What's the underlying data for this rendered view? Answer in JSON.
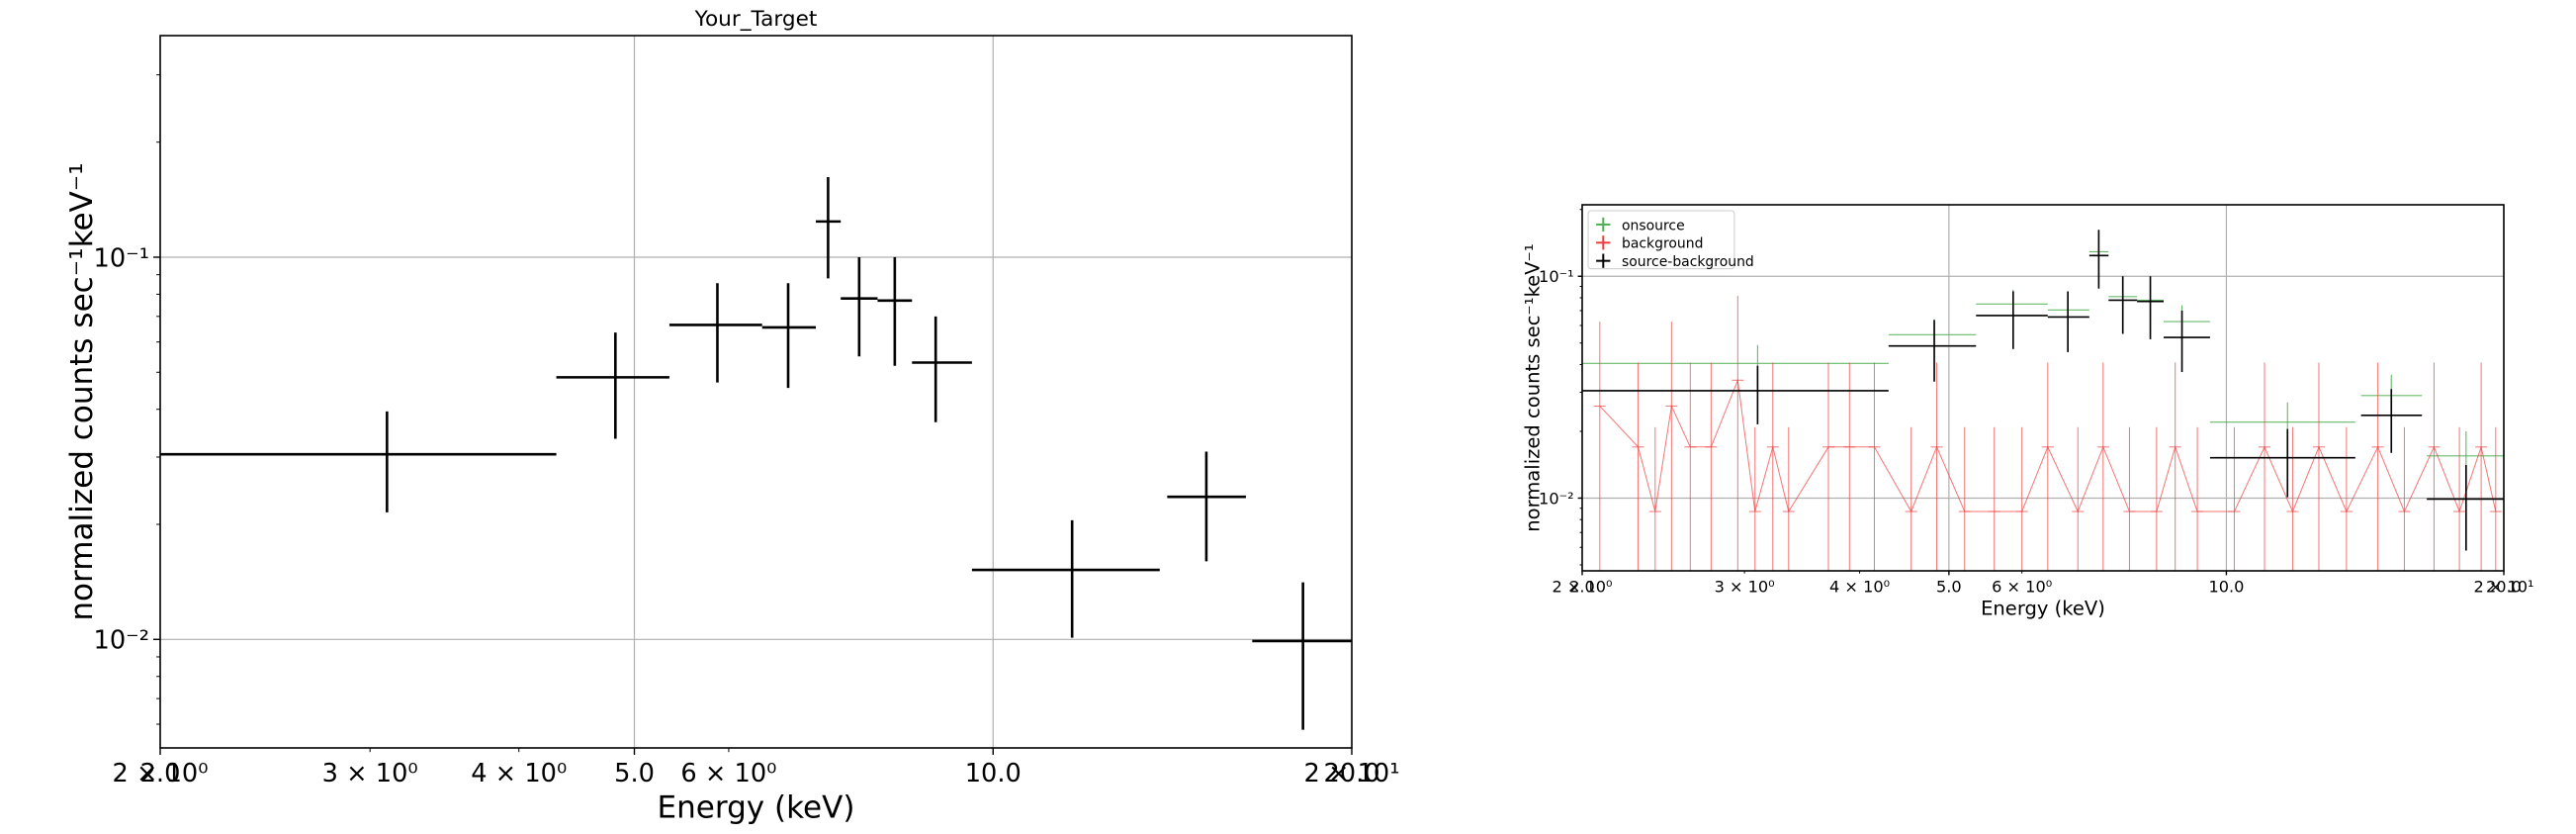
{
  "colors": {
    "frame": "#000000",
    "grid": "#b0b0b0",
    "data": "#000000",
    "onsource": "#4caf50",
    "background": "#f03c3c",
    "net": "#000000"
  },
  "chart_data": [
    {
      "type": "scatter",
      "title": "Your_Target",
      "xlabel": "Energy (keV)",
      "ylabel": "normalized counts sec⁻¹keV⁻¹",
      "xscale": "log",
      "yscale": "log",
      "xlim": [
        2.0,
        20.0
      ],
      "ylim": [
        0.0052,
        0.38
      ],
      "grid": true,
      "x_ticks": [
        {
          "value": 2.0,
          "label": "2.0"
        },
        {
          "value": 5.0,
          "label": "5.0"
        },
        {
          "value": 10.0,
          "label": "10.0"
        },
        {
          "value": 20.0,
          "label": "20.0"
        }
      ],
      "x_minor_ticks": [
        {
          "value": 2.0,
          "label": "2 × 10⁰"
        },
        {
          "value": 3.0,
          "label": "3 × 10⁰"
        },
        {
          "value": 4.0,
          "label": "4 × 10⁰"
        },
        {
          "value": 6.0,
          "label": "6 × 10⁰"
        },
        {
          "value": 20.0,
          "label": "2 × 10¹"
        }
      ],
      "y_ticks": [
        {
          "value": 0.1,
          "label": "10⁻¹"
        },
        {
          "value": 0.01,
          "label": "10⁻²"
        }
      ],
      "series": [
        {
          "points": [
            {
              "x": 3.1,
              "xlo": 2.0,
              "xhi": 4.3,
              "y": 0.0305,
              "ylo": 0.0215,
              "yhi": 0.0395
            },
            {
              "x": 4.82,
              "xlo": 4.3,
              "xhi": 5.35,
              "y": 0.0485,
              "ylo": 0.0335,
              "yhi": 0.0635
            },
            {
              "x": 5.87,
              "xlo": 5.35,
              "xhi": 6.4,
              "y": 0.0665,
              "ylo": 0.047,
              "yhi": 0.0855
            },
            {
              "x": 6.73,
              "xlo": 6.4,
              "xhi": 7.1,
              "y": 0.0655,
              "ylo": 0.0455,
              "yhi": 0.0855
            },
            {
              "x": 7.27,
              "xlo": 7.1,
              "xhi": 7.45,
              "y": 0.124,
              "ylo": 0.088,
              "yhi": 0.162
            },
            {
              "x": 7.72,
              "xlo": 7.45,
              "xhi": 8.0,
              "y": 0.078,
              "ylo": 0.055,
              "yhi": 0.1
            },
            {
              "x": 8.27,
              "xlo": 8.0,
              "xhi": 8.55,
              "y": 0.077,
              "ylo": 0.052,
              "yhi": 0.1
            },
            {
              "x": 8.95,
              "xlo": 8.55,
              "xhi": 9.6,
              "y": 0.053,
              "ylo": 0.037,
              "yhi": 0.07
            },
            {
              "x": 11.65,
              "xlo": 9.6,
              "xhi": 13.8,
              "y": 0.0152,
              "ylo": 0.0101,
              "yhi": 0.0205
            },
            {
              "x": 15.1,
              "xlo": 14.0,
              "xhi": 16.3,
              "y": 0.0236,
              "ylo": 0.016,
              "yhi": 0.031
            },
            {
              "x": 18.2,
              "xlo": 16.5,
              "xhi": 20.0,
              "y": 0.0099,
              "ylo": 0.0058,
              "yhi": 0.0141
            }
          ]
        }
      ]
    },
    {
      "type": "scatter",
      "title": "",
      "xlabel": "Energy (keV)",
      "ylabel": "normalized counts sec⁻¹keV⁻¹",
      "xscale": "log",
      "yscale": "log",
      "xlim": [
        2.0,
        20.0
      ],
      "ylim": [
        0.0047,
        0.21
      ],
      "grid": true,
      "legend_position": "top-left",
      "x_ticks": [
        {
          "value": 2.0,
          "label": "2.0"
        },
        {
          "value": 5.0,
          "label": "5.0"
        },
        {
          "value": 10.0,
          "label": "10.0"
        },
        {
          "value": 20.0,
          "label": "20.0"
        }
      ],
      "x_minor_ticks": [
        {
          "value": 2.0,
          "label": "2 × 10⁰"
        },
        {
          "value": 3.0,
          "label": "3 × 10⁰"
        },
        {
          "value": 4.0,
          "label": "4 × 10⁰"
        },
        {
          "value": 6.0,
          "label": "6 × 10⁰"
        },
        {
          "value": 20.0,
          "label": "2 × 10¹"
        }
      ],
      "y_ticks": [
        {
          "value": 0.1,
          "label": "10⁻¹"
        },
        {
          "value": 0.01,
          "label": "10⁻²"
        }
      ],
      "series": [
        {
          "name": "onsource",
          "points": [
            {
              "x": 3.1,
              "xlo": 2.0,
              "xhi": 4.3,
              "y": 0.0405,
              "ylo": 0.032,
              "yhi": 0.049
            },
            {
              "x": 4.82,
              "xlo": 4.3,
              "xhi": 5.35,
              "y": 0.0545,
              "ylo": 0.045,
              "yhi": 0.064
            },
            {
              "x": 5.87,
              "xlo": 5.35,
              "xhi": 6.4,
              "y": 0.075,
              "ylo": 0.063,
              "yhi": 0.087
            },
            {
              "x": 6.73,
              "xlo": 6.4,
              "xhi": 7.1,
              "y": 0.0705,
              "ylo": 0.059,
              "yhi": 0.082
            },
            {
              "x": 7.27,
              "xlo": 7.1,
              "xhi": 7.45,
              "y": 0.129,
              "ylo": 0.11,
              "yhi": 0.148
            },
            {
              "x": 7.72,
              "xlo": 7.45,
              "xhi": 8.0,
              "y": 0.081,
              "ylo": 0.069,
              "yhi": 0.093
            },
            {
              "x": 8.27,
              "xlo": 8.0,
              "xhi": 8.55,
              "y": 0.078,
              "ylo": 0.066,
              "yhi": 0.09
            },
            {
              "x": 8.95,
              "xlo": 8.55,
              "xhi": 9.6,
              "y": 0.0625,
              "ylo": 0.051,
              "yhi": 0.074
            },
            {
              "x": 11.65,
              "xlo": 9.6,
              "xhi": 13.8,
              "y": 0.022,
              "ylo": 0.017,
              "yhi": 0.027
            },
            {
              "x": 15.1,
              "xlo": 14.0,
              "xhi": 16.3,
              "y": 0.029,
              "ylo": 0.022,
              "yhi": 0.036
            },
            {
              "x": 18.2,
              "xlo": 16.5,
              "xhi": 20.0,
              "y": 0.0155,
              "ylo": 0.011,
              "yhi": 0.02
            }
          ]
        },
        {
          "name": "background",
          "points": [
            {
              "x": 2.09,
              "y": 0.026
            },
            {
              "x": 2.3,
              "y": 0.017
            },
            {
              "x": 2.4,
              "y": 0.0087
            },
            {
              "x": 2.5,
              "y": 0.026
            },
            {
              "x": 2.62,
              "y": 0.017
            },
            {
              "x": 2.76,
              "y": 0.017
            },
            {
              "x": 2.95,
              "y": 0.034
            },
            {
              "x": 3.08,
              "y": 0.0087
            },
            {
              "x": 3.22,
              "y": 0.017
            },
            {
              "x": 3.35,
              "y": 0.0087
            },
            {
              "x": 3.7,
              "y": 0.017
            },
            {
              "x": 3.9,
              "y": 0.017
            },
            {
              "x": 4.15,
              "y": 0.017
            },
            {
              "x": 4.55,
              "y": 0.0087
            },
            {
              "x": 4.85,
              "y": 0.017
            },
            {
              "x": 5.2,
              "y": 0.0087
            },
            {
              "x": 5.6,
              "y": 0.0087
            },
            {
              "x": 6.0,
              "y": 0.0087
            },
            {
              "x": 6.4,
              "y": 0.017
            },
            {
              "x": 6.9,
              "y": 0.0087
            },
            {
              "x": 7.35,
              "y": 0.017
            },
            {
              "x": 7.85,
              "y": 0.0087
            },
            {
              "x": 8.4,
              "y": 0.0087
            },
            {
              "x": 8.8,
              "y": 0.017
            },
            {
              "x": 9.3,
              "y": 0.0087
            },
            {
              "x": 10.2,
              "y": 0.0087
            },
            {
              "x": 11.0,
              "y": 0.017
            },
            {
              "x": 11.8,
              "y": 0.0087
            },
            {
              "x": 12.6,
              "y": 0.017
            },
            {
              "x": 13.5,
              "y": 0.0087
            },
            {
              "x": 14.6,
              "y": 0.017
            },
            {
              "x": 15.6,
              "y": 0.0087
            },
            {
              "x": 16.8,
              "y": 0.017
            },
            {
              "x": 17.9,
              "y": 0.0087
            },
            {
              "x": 18.9,
              "y": 0.017
            },
            {
              "x": 19.6,
              "y": 0.0087
            }
          ]
        },
        {
          "name": "source-background",
          "points": [
            {
              "x": 3.1,
              "xlo": 2.0,
              "xhi": 4.3,
              "y": 0.0305,
              "ylo": 0.0215,
              "yhi": 0.0395
            },
            {
              "x": 4.82,
              "xlo": 4.3,
              "xhi": 5.35,
              "y": 0.0485,
              "ylo": 0.0335,
              "yhi": 0.0635
            },
            {
              "x": 5.87,
              "xlo": 5.35,
              "xhi": 6.4,
              "y": 0.0665,
              "ylo": 0.047,
              "yhi": 0.0855
            },
            {
              "x": 6.73,
              "xlo": 6.4,
              "xhi": 7.1,
              "y": 0.0655,
              "ylo": 0.0455,
              "yhi": 0.0855
            },
            {
              "x": 7.27,
              "xlo": 7.1,
              "xhi": 7.45,
              "y": 0.124,
              "ylo": 0.088,
              "yhi": 0.162
            },
            {
              "x": 7.72,
              "xlo": 7.45,
              "xhi": 8.0,
              "y": 0.078,
              "ylo": 0.055,
              "yhi": 0.1
            },
            {
              "x": 8.27,
              "xlo": 8.0,
              "xhi": 8.55,
              "y": 0.077,
              "ylo": 0.052,
              "yhi": 0.1
            },
            {
              "x": 8.95,
              "xlo": 8.55,
              "xhi": 9.6,
              "y": 0.053,
              "ylo": 0.037,
              "yhi": 0.07
            },
            {
              "x": 11.65,
              "xlo": 9.6,
              "xhi": 13.8,
              "y": 0.0152,
              "ylo": 0.0101,
              "yhi": 0.0205
            },
            {
              "x": 15.1,
              "xlo": 14.0,
              "xhi": 16.3,
              "y": 0.0236,
              "ylo": 0.016,
              "yhi": 0.031
            },
            {
              "x": 18.2,
              "xlo": 16.5,
              "xhi": 20.0,
              "y": 0.0099,
              "ylo": 0.0058,
              "yhi": 0.0141
            }
          ]
        }
      ]
    }
  ]
}
